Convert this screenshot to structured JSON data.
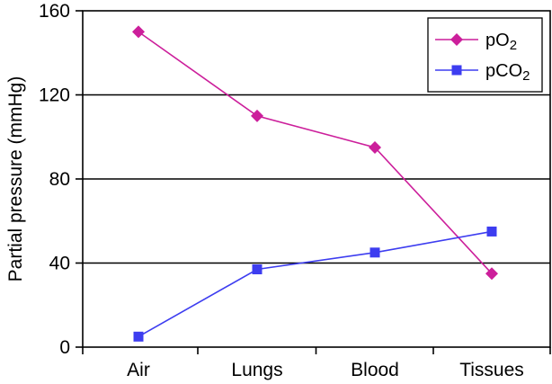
{
  "chart_data": {
    "type": "line",
    "categories": [
      "Air",
      "Lungs",
      "Blood",
      "Tissues"
    ],
    "ylabel": "Partial pressure (mmHg)",
    "xlabel": "",
    "title": "",
    "ylim": [
      0,
      160
    ],
    "yticks": [
      "0",
      "40",
      "80",
      "120",
      "160"
    ],
    "grid": "horizontal",
    "legend_position": "top-right",
    "series": [
      {
        "name": "pO2",
        "name_base": "pO",
        "name_sub": "2",
        "marker": "diamond",
        "color": "#cc1f9b",
        "values": [
          150,
          110,
          95,
          35
        ]
      },
      {
        "name": "pCO2",
        "name_base": "pCO",
        "name_sub": "2",
        "marker": "square",
        "color": "#3d3df0",
        "values": [
          5,
          37,
          45,
          55
        ]
      }
    ]
  }
}
